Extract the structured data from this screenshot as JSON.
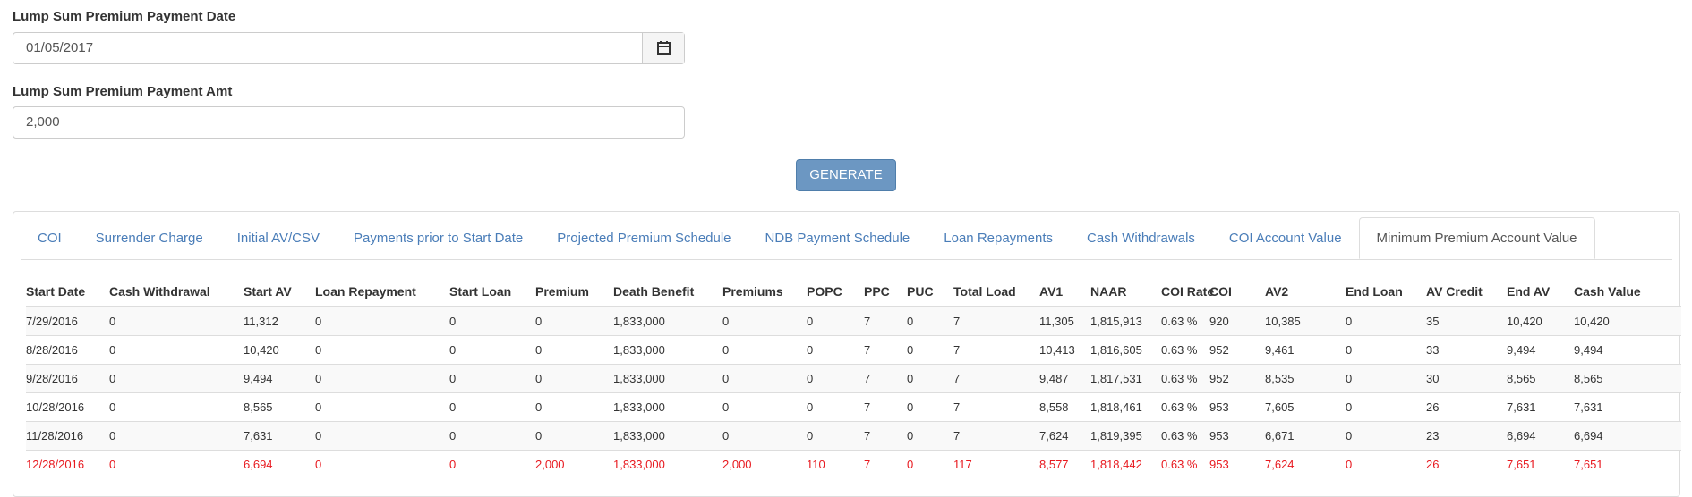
{
  "form": {
    "fields": [
      {
        "label": "Lump Sum Premium Payment Date",
        "value": "01/05/2017"
      },
      {
        "label": "Lump Sum Premium Payment Amt",
        "value": "2,000"
      }
    ],
    "button": "GENERATE"
  },
  "tabs": {
    "items": [
      "COI",
      "Surrender Charge",
      "Initial AV/CSV",
      "Payments prior to Start Date",
      "Projected Premium Schedule",
      "NDB Payment Schedule",
      "Loan Repayments",
      "Cash Withdrawals",
      "COI Account Value",
      "Minimum Premium Account Value"
    ],
    "active": 9
  },
  "table": {
    "columns": [
      "Start Date",
      "Cash Withdrawal",
      "Start AV",
      "Loan Repayment",
      "Start Loan",
      "Premium",
      "Death Benefit",
      "Premiums",
      "POPC",
      "PPC",
      "PUC",
      "Total Load",
      "AV1",
      "NAAR",
      "COI Rate",
      "COI",
      "AV2",
      "End Loan",
      "AV Credit",
      "End AV",
      "Cash Value"
    ],
    "rows": [
      [
        "7/29/2016",
        "0",
        "11,312",
        "0",
        "0",
        "0",
        "1,833,000",
        "0",
        "0",
        "7",
        "0",
        "7",
        "11,305",
        "1,815,913",
        "0.63 %",
        "920",
        "10,385",
        "0",
        "35",
        "10,420",
        "10,420"
      ],
      [
        "8/28/2016",
        "0",
        "10,420",
        "0",
        "0",
        "0",
        "1,833,000",
        "0",
        "0",
        "7",
        "0",
        "7",
        "10,413",
        "1,816,605",
        "0.63 %",
        "952",
        "9,461",
        "0",
        "33",
        "9,494",
        "9,494"
      ],
      [
        "9/28/2016",
        "0",
        "9,494",
        "0",
        "0",
        "0",
        "1,833,000",
        "0",
        "0",
        "7",
        "0",
        "7",
        "9,487",
        "1,817,531",
        "0.63 %",
        "952",
        "8,535",
        "0",
        "30",
        "8,565",
        "8,565"
      ],
      [
        "10/28/2016",
        "0",
        "8,565",
        "0",
        "0",
        "0",
        "1,833,000",
        "0",
        "0",
        "7",
        "0",
        "7",
        "8,558",
        "1,818,461",
        "0.63 %",
        "953",
        "7,605",
        "0",
        "26",
        "7,631",
        "7,631"
      ],
      [
        "11/28/2016",
        "0",
        "7,631",
        "0",
        "0",
        "0",
        "1,833,000",
        "0",
        "0",
        "7",
        "0",
        "7",
        "7,624",
        "1,819,395",
        "0.63 %",
        "953",
        "6,671",
        "0",
        "23",
        "6,694",
        "6,694"
      ],
      [
        "12/28/2016",
        "0",
        "6,694",
        "0",
        "0",
        "2,000",
        "1,833,000",
        "2,000",
        "110",
        "7",
        "0",
        "117",
        "8,577",
        "1,818,442",
        "0.63 %",
        "953",
        "7,624",
        "0",
        "26",
        "7,651",
        "7,651"
      ]
    ],
    "highlight_row": 5
  }
}
